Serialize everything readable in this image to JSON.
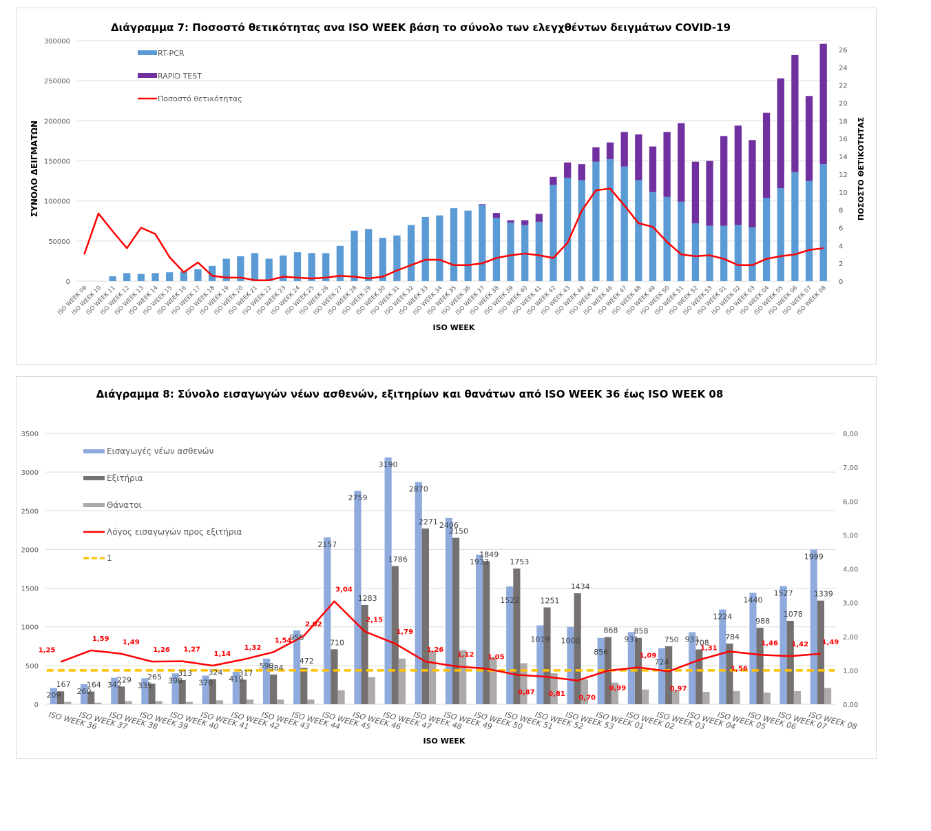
{
  "chart_data": [
    {
      "type": "bar",
      "subtype": "stacked-bar-with-line",
      "title": "Διάγραμμα 7: Ποσοστό θετικότητας ανα ISO WEEK βάση το σύνολο των ελεγχθέντων δειγμάτων COVID-19",
      "xlabel": "ISO WEEK",
      "ylabel": "ΣΥΝΟΛΟ ΔΕΙΓΜΑΤΩΝ",
      "y2label": "ΠΟΣΟΣΤΟ ΘΕΤΙΚΟΤΗΤΑΣ",
      "ylim": [
        0,
        300000
      ],
      "y2lim": [
        0,
        26
      ],
      "yticks": [
        "0",
        "50000",
        "100000",
        "150000",
        "200000",
        "250000",
        "300000"
      ],
      "y2ticks": [
        "0",
        "2",
        "4",
        "6",
        "8",
        "10",
        "12",
        "14",
        "16",
        "18",
        "20",
        "22",
        "24",
        "26"
      ],
      "grid": true,
      "legend_position": "top-left",
      "categories": [
        "ISO WEEK 09",
        "ISO WEEK 10",
        "ISO WEEK 11",
        "ISO WEEK 12",
        "ISO WEEK 13",
        "ISO WEEK 14",
        "ISO WEEK 15",
        "ISO WEEK 16",
        "ISO WEEK 17",
        "ISO WEEK 18",
        "ISO WEEK 19",
        "ISO WEEK 20",
        "ISO WEEK 21",
        "ISO WEEK 22",
        "ISO WEEK 23",
        "ISO WEEK 24",
        "ISO WEEK 25",
        "ISO WEEK 26",
        "ISO WEEK 27",
        "ISO WEEK 28",
        "ISO WEEK 29",
        "ISO WEEK 30",
        "ISO WEEK 31",
        "ISO WEEK 32",
        "ISO WEEK 33",
        "ISO WEEK 34",
        "ISO WEEK 35",
        "ISO WEEK 36",
        "ISO WEEK 37",
        "ISO WEEK 38",
        "ISO WEEK 39",
        "ISO WEEK 40",
        "ISO WEEK 41",
        "ISO WEEK 42",
        "ISO WEEK 43",
        "ISO WEEK 44",
        "ISO WEEK 45",
        "ISO WEEK 46",
        "ISO WEEK 47",
        "ISO WEEK 48",
        "ISO WEEK 49",
        "ISO WEEK 50",
        "ISO WEEK 51",
        "ISO WEEK 52",
        "ISO WEEK 53",
        "ISO WEEK 01",
        "ISO WEEK 02",
        "ISO WEEK 03",
        "ISO WEEK 04",
        "ISO WEEK 05",
        "ISO WEEK 06",
        "ISO WEEK 07",
        "ISO WEEK 08"
      ],
      "series": [
        {
          "name": "RT-PCR",
          "kind": "bar",
          "axis": "left",
          "color": "#5b9bd5",
          "values": [
            0,
            0,
            6000,
            10000,
            9000,
            10000,
            11000,
            12000,
            15000,
            19000,
            28000,
            31000,
            35000,
            28000,
            32000,
            36000,
            35000,
            35000,
            44000,
            63000,
            65000,
            54000,
            57000,
            70000,
            80000,
            82000,
            91000,
            88000,
            95000,
            79000,
            73000,
            70000,
            74000,
            120000,
            129000,
            126000,
            149000,
            152000,
            143000,
            126000,
            111000,
            105000,
            99000,
            72000,
            69000,
            69000,
            70000,
            67000,
            104000,
            116000,
            136000,
            125000,
            146000
          ]
        },
        {
          "name": "RAPID TEST",
          "kind": "bar",
          "axis": "left",
          "color": "#7030a0",
          "values": [
            0,
            0,
            0,
            0,
            0,
            0,
            0,
            0,
            0,
            0,
            0,
            0,
            0,
            0,
            0,
            0,
            0,
            0,
            0,
            0,
            0,
            0,
            0,
            0,
            0,
            0,
            0,
            0,
            1000,
            6000,
            3000,
            6000,
            10000,
            10000,
            19000,
            20000,
            18000,
            21000,
            43000,
            57000,
            57000,
            81000,
            98000,
            77000,
            81000,
            112000,
            124000,
            109000,
            106000,
            137000,
            146000,
            106000,
            150000
          ]
        },
        {
          "name": "Ποσοστό θετικότητας",
          "kind": "line",
          "axis": "right",
          "color": "#ff0000",
          "values": [
            3.0,
            7.6,
            5.6,
            3.7,
            6.0,
            5.3,
            2.7,
            1.0,
            2.1,
            0.6,
            0.4,
            0.4,
            0.1,
            0.1,
            0.5,
            0.4,
            0.3,
            0.4,
            0.6,
            0.5,
            0.3,
            0.5,
            1.2,
            1.8,
            2.4,
            2.4,
            1.8,
            1.8,
            2.0,
            2.6,
            2.9,
            3.1,
            2.9,
            2.6,
            4.3,
            7.9,
            10.2,
            10.4,
            8.5,
            6.5,
            6.1,
            4.4,
            3.0,
            2.8,
            2.9,
            2.5,
            1.8,
            1.8,
            2.5,
            2.8,
            3.0,
            3.5,
            3.7
          ]
        }
      ]
    },
    {
      "type": "bar",
      "subtype": "clustered-bar-with-line",
      "title": "Διάγραμμα 8: Σύνολο εισαγωγών νέων ασθενών, εξιτηρίων και θανάτων από ISO WEEK 36 έως ISO WEEK 08",
      "xlabel": "ISO WEEK",
      "ylabel": "",
      "ylim": [
        0,
        3500
      ],
      "y2lim": [
        0,
        8
      ],
      "yticks": [
        "0",
        "500",
        "1000",
        "1500",
        "2000",
        "2500",
        "3000",
        "3500"
      ],
      "y2ticks": [
        "0,00",
        "1,00",
        "2,00",
        "3,00",
        "4,00",
        "5,00",
        "6,00",
        "7,00",
        "8,00"
      ],
      "grid": true,
      "legend_position": "top-left",
      "categories": [
        "ISO WEEK 36",
        "ISO WEEK 37",
        "ISO WEEK 38",
        "ISO WEEK 39",
        "ISO WEEK 40",
        "ISO WEEK 41",
        "ISO WEEK 42",
        "ISO WEEK 43",
        "ISO WEEK 44",
        "ISO WEEK 45",
        "ISO WEEK 46",
        "ISO WEEK 47",
        "ISO WEEK 48",
        "ISO WEEK 49",
        "ISO WEEK 50",
        "ISO WEEK 51",
        "ISO WEEK 52",
        "ISO WEEK 53",
        "ISO WEEK 01",
        "ISO WEEK 02",
        "ISO WEEK 03",
        "ISO WEEK 04",
        "ISO WEEK 05",
        "ISO WEEK 06",
        "ISO WEEK 07",
        "ISO WEEK 08"
      ],
      "series": [
        {
          "name": "Εισαγωγές νέων ασθενών",
          "kind": "bar",
          "axis": "left",
          "color": "#8faadc",
          "values": [
            209,
            260,
            342,
            335,
            398,
            370,
            419,
            590,
            955,
            2157,
            2759,
            3190,
            2870,
            2406,
            1933,
            1522,
            1019,
            1000,
            856,
            931,
            724,
            931,
            1224,
            1440,
            1527,
            1999
          ]
        },
        {
          "name": "Εξιτήρια",
          "kind": "bar",
          "axis": "left",
          "color": "#767171",
          "values": [
            167,
            164,
            229,
            265,
            313,
            324,
            317,
            384,
            472,
            710,
            1283,
            1786,
            2271,
            2150,
            1849,
            1753,
            1251,
            1434,
            868,
            858,
            750,
            708,
            784,
            988,
            1078,
            1339
          ]
        },
        {
          "name": "Θάνατοι",
          "kind": "bar",
          "axis": "left",
          "color": "#aeaaaa",
          "values": [
            30,
            20,
            40,
            40,
            30,
            50,
            60,
            60,
            60,
            180,
            350,
            590,
            690,
            700,
            610,
            530,
            400,
            320,
            280,
            190,
            180,
            160,
            170,
            150,
            170,
            210
          ]
        },
        {
          "name": "Λόγος εισαγωγών προς εξιτήρια",
          "kind": "line",
          "axis": "right",
          "color": "#ff0000",
          "values": [
            1.25,
            1.59,
            1.49,
            1.26,
            1.27,
            1.14,
            1.32,
            1.54,
            2.02,
            3.04,
            2.15,
            1.79,
            1.26,
            1.12,
            1.05,
            0.87,
            0.81,
            0.7,
            0.99,
            1.09,
            0.97,
            1.31,
            1.56,
            1.46,
            1.42,
            1.49
          ],
          "labels": [
            "1,25",
            "1,59",
            "1,49",
            "1,26",
            "1,27",
            "1,14",
            "1,32",
            "1,54",
            "2,02",
            "3,04",
            "2,15",
            "1,79",
            "1,26",
            "1,12",
            "1,05",
            "0,87",
            "0,81",
            "0,70",
            "0,99",
            "1,09",
            "0,97",
            "1,31",
            "1,56",
            "1,46",
            "1,42",
            "1,49"
          ]
        },
        {
          "name": "1",
          "kind": "dashed-line",
          "axis": "right",
          "color": "#ffc000",
          "value": 1
        }
      ]
    }
  ]
}
